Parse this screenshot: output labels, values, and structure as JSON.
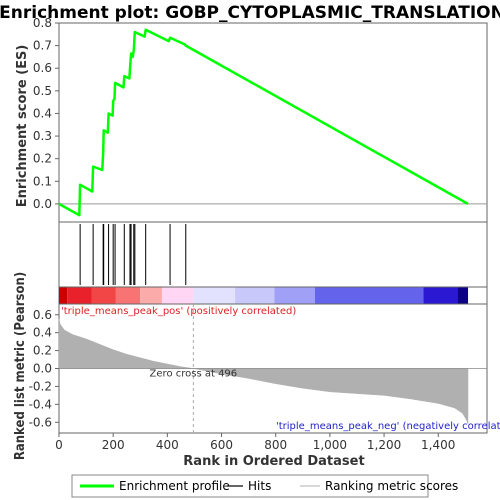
{
  "chart_data": {
    "type": "line",
    "title": "Enrichment plot: GOBP_CYTOPLASMIC_TRANSLATION",
    "xlabel": "Rank in Ordered Dataset",
    "xlim": [
      0,
      1580
    ],
    "x_ticks": [
      0,
      200,
      400,
      600,
      800,
      1000,
      1200,
      1400
    ],
    "x_tick_labels": [
      "0",
      "200",
      "400",
      "600",
      "800",
      "1,000",
      "1,200",
      "1,400"
    ],
    "es_panel": {
      "ylabel": "Enrichment score (ES)",
      "ylim": [
        -0.08,
        0.8
      ],
      "y_ticks": [
        0.0,
        0.1,
        0.2,
        0.3,
        0.4,
        0.5,
        0.6,
        0.7,
        0.8
      ],
      "y_tick_labels": [
        "0.0",
        "0.1",
        "0.2",
        "0.3",
        "0.4",
        "0.5",
        "0.6",
        "0.7",
        "0.8"
      ],
      "series": [
        {
          "name": "Enrichment profile",
          "color": "#00ff00",
          "points": [
            [
              0,
              0.0
            ],
            [
              75,
              -0.05
            ],
            [
              78,
              0.085
            ],
            [
              123,
              0.055
            ],
            [
              126,
              0.165
            ],
            [
              160,
              0.15
            ],
            [
              163,
              0.23
            ],
            [
              165,
              0.325
            ],
            [
              180,
              0.315
            ],
            [
              183,
              0.4
            ],
            [
              198,
              0.39
            ],
            [
              200,
              0.455
            ],
            [
              205,
              0.465
            ],
            [
              207,
              0.535
            ],
            [
              238,
              0.515
            ],
            [
              241,
              0.565
            ],
            [
              260,
              0.555
            ],
            [
              262,
              0.6
            ],
            [
              266,
              0.665
            ],
            [
              272,
              0.65
            ],
            [
              276,
              0.68
            ],
            [
              280,
              0.76
            ],
            [
              316,
              0.74
            ],
            [
              320,
              0.77
            ],
            [
              405,
              0.72
            ],
            [
              410,
              0.735
            ],
            [
              465,
              0.705
            ],
            [
              468,
              0.7
            ],
            [
              1510,
              0.0
            ]
          ]
        }
      ]
    },
    "hits": {
      "name": "Hits",
      "ranks": [
        78,
        126,
        163,
        165,
        183,
        200,
        207,
        241,
        262,
        266,
        276,
        280,
        320,
        410,
        468
      ]
    },
    "rank_panel": {
      "ylabel": "Ranked list metric (Pearson)",
      "ylim": [
        -0.72,
        0.72
      ],
      "y_ticks": [
        -0.6,
        -0.4,
        -0.2,
        0.0,
        0.2,
        0.4,
        0.6
      ],
      "y_tick_labels": [
        "-0.6",
        "-0.4",
        "-0.2",
        "0.0",
        "0.2",
        "0.4",
        "0.6"
      ],
      "series": [
        {
          "name": "Ranking metric scores",
          "color": "#b0b0b0",
          "points": [
            [
              0,
              0.55
            ],
            [
              5,
              0.49
            ],
            [
              20,
              0.43
            ],
            [
              50,
              0.38
            ],
            [
              100,
              0.33
            ],
            [
              150,
              0.27
            ],
            [
              200,
              0.21
            ],
            [
              250,
              0.16
            ],
            [
              300,
              0.12
            ],
            [
              350,
              0.08
            ],
            [
              400,
              0.05
            ],
            [
              450,
              0.02
            ],
            [
              496,
              0.0
            ],
            [
              550,
              -0.03
            ],
            [
              600,
              -0.06
            ],
            [
              700,
              -0.11
            ],
            [
              800,
              -0.17
            ],
            [
              900,
              -0.22
            ],
            [
              1000,
              -0.26
            ],
            [
              1100,
              -0.28
            ],
            [
              1200,
              -0.3
            ],
            [
              1300,
              -0.34
            ],
            [
              1400,
              -0.39
            ],
            [
              1460,
              -0.44
            ],
            [
              1490,
              -0.5
            ],
            [
              1505,
              -0.58
            ],
            [
              1510,
              -0.62
            ]
          ]
        }
      ],
      "zero_cross_rank": 496,
      "zero_cross_label": "Zero cross at 496",
      "pos_label": "'triple_means_peak_pos' (positively correlated)",
      "neg_label": "'triple_means_peak_neg' (negatively correlated)"
    },
    "color_bar": {
      "segments": [
        {
          "from": 0,
          "to": 30,
          "color": "#cc0000"
        },
        {
          "from": 30,
          "to": 120,
          "color": "#e8212a"
        },
        {
          "from": 120,
          "to": 210,
          "color": "#f24646"
        },
        {
          "from": 210,
          "to": 300,
          "color": "#f87474"
        },
        {
          "from": 300,
          "to": 380,
          "color": "#fcabab"
        },
        {
          "from": 380,
          "to": 496,
          "color": "#ffd6f3"
        },
        {
          "from": 496,
          "to": 650,
          "color": "#e2e2ff"
        },
        {
          "from": 650,
          "to": 795,
          "color": "#c8c8fb"
        },
        {
          "from": 795,
          "to": 945,
          "color": "#a0a0f6"
        },
        {
          "from": 945,
          "to": 1345,
          "color": "#6363eb"
        },
        {
          "from": 1345,
          "to": 1470,
          "color": "#2a18d2"
        },
        {
          "from": 1470,
          "to": 1510,
          "color": "#0c0088"
        }
      ]
    },
    "legend": {
      "placement": "bottom",
      "items": [
        {
          "label": "Enrichment profile",
          "color": "#00ff00",
          "kind": "thick-line"
        },
        {
          "label": "Hits",
          "color": "#000000",
          "kind": "line"
        },
        {
          "label": "Ranking metric scores",
          "color": "#c0c0c0",
          "kind": "line"
        }
      ]
    }
  }
}
